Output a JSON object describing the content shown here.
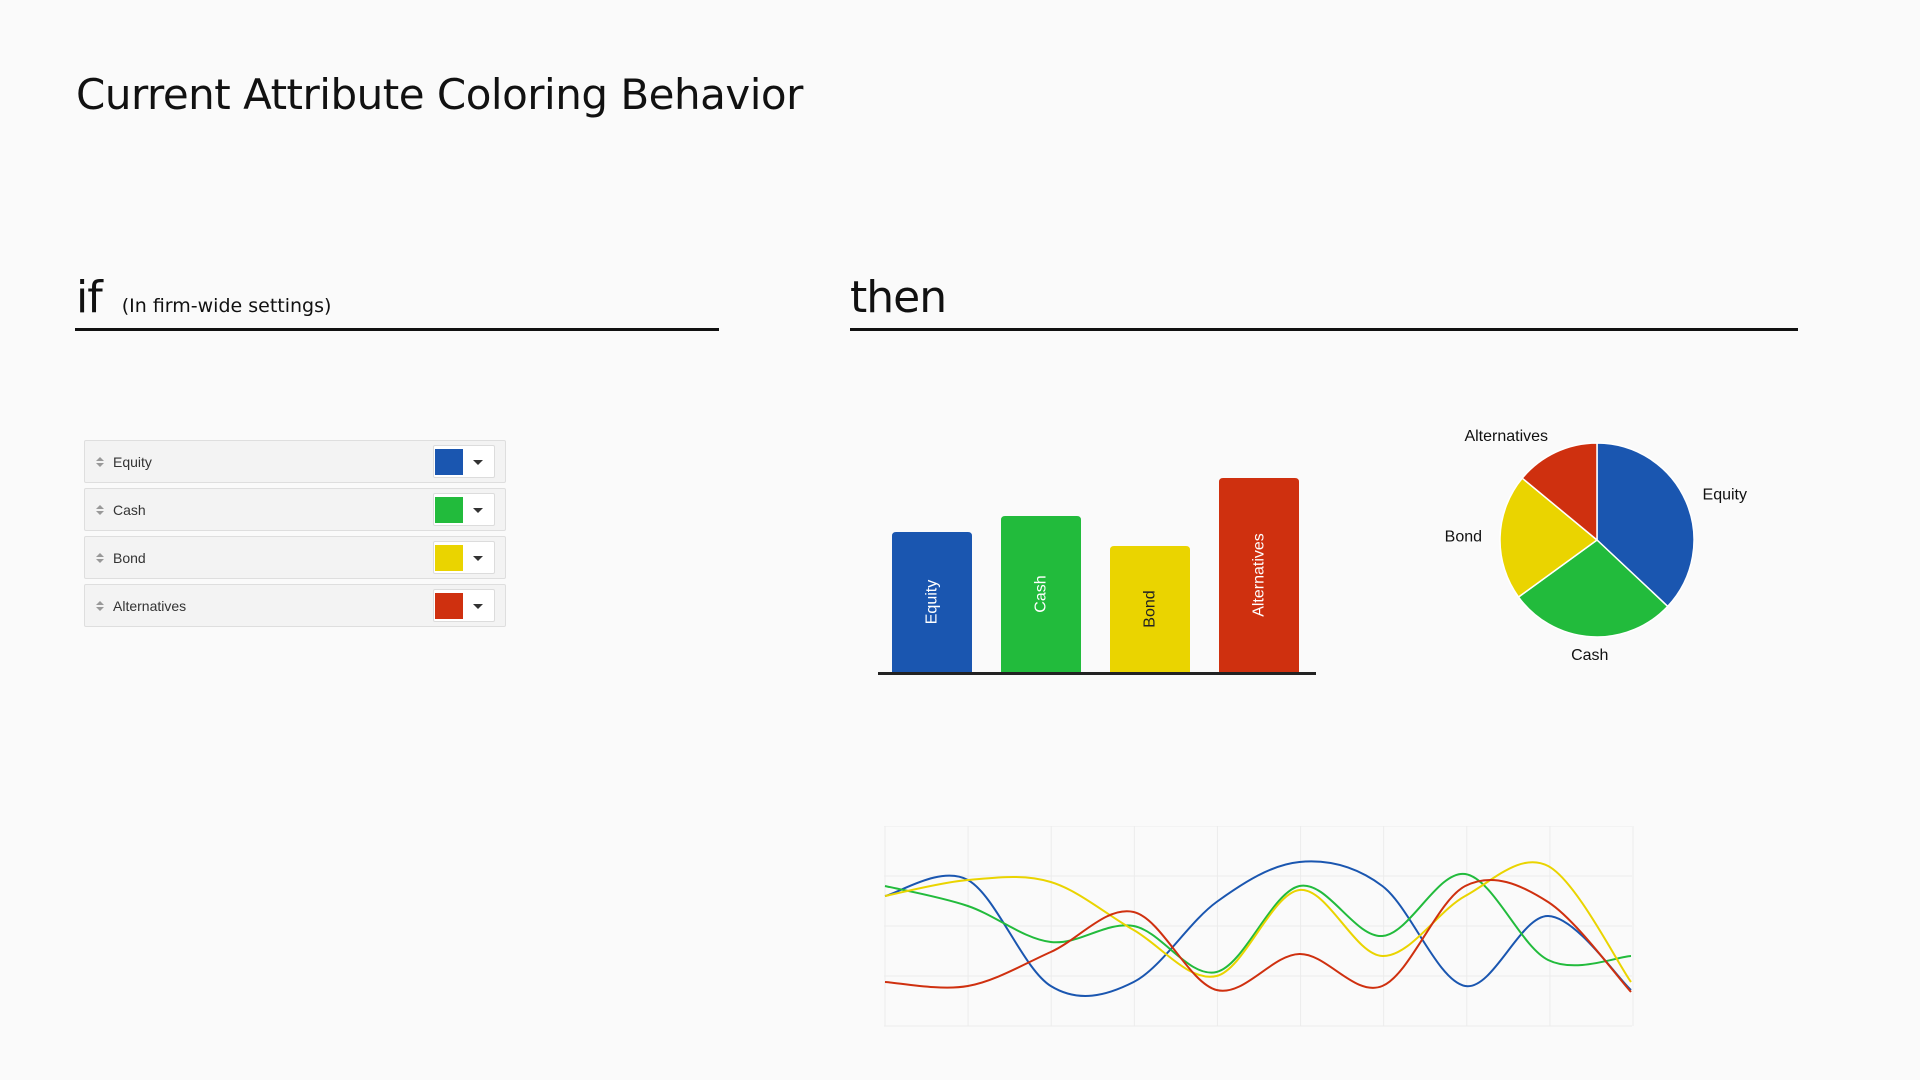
{
  "page": {
    "title": "Current Attribute Coloring Behavior",
    "if_label": "if",
    "if_note": "(In firm-wide settings)",
    "then_label": "then"
  },
  "attributes": [
    {
      "label": "Equity",
      "color": "#1a56b0"
    },
    {
      "label": "Cash",
      "color": "#22bb3c"
    },
    {
      "label": "Bond",
      "color": "#ead400"
    },
    {
      "label": "Alternatives",
      "color": "#cf300f"
    }
  ],
  "chart_data": [
    {
      "type": "bar",
      "title": "",
      "categories": [
        "Equity",
        "Cash",
        "Bond",
        "Alternatives"
      ],
      "values": [
        70,
        78,
        63,
        97
      ],
      "colors": [
        "#1a56b0",
        "#22bb3c",
        "#ead400",
        "#cf300f"
      ],
      "ylim": [
        0,
        100
      ],
      "xlabel": "",
      "ylabel": "",
      "grid": false,
      "legend": "none"
    },
    {
      "type": "pie",
      "title": "",
      "labels": [
        "Equity",
        "Cash",
        "Bond",
        "Alternatives"
      ],
      "values": [
        37,
        28,
        21,
        14
      ],
      "colors": [
        "#1a56b0",
        "#22bb3c",
        "#ead400",
        "#cf300f"
      ],
      "legend": "none"
    },
    {
      "type": "line",
      "title": "",
      "x": [
        0,
        1,
        2,
        3,
        4,
        5,
        6,
        7,
        8,
        9
      ],
      "series": [
        {
          "name": "Equity",
          "color": "#1a56b0",
          "values": [
            65,
            73,
            20,
            22,
            62,
            82,
            70,
            20,
            55,
            18
          ]
        },
        {
          "name": "Cash",
          "color": "#22bb3c",
          "values": [
            70,
            60,
            42,
            50,
            27,
            70,
            45,
            76,
            33,
            35
          ]
        },
        {
          "name": "Bond",
          "color": "#ead400",
          "values": [
            65,
            73,
            72,
            48,
            25,
            68,
            35,
            65,
            80,
            22
          ]
        },
        {
          "name": "Alternatives",
          "color": "#cf300f",
          "values": [
            22,
            20,
            37,
            57,
            18,
            36,
            20,
            70,
            62,
            17
          ]
        }
      ],
      "ylim": [
        0,
        100
      ],
      "grid": true,
      "legend": "none"
    }
  ]
}
